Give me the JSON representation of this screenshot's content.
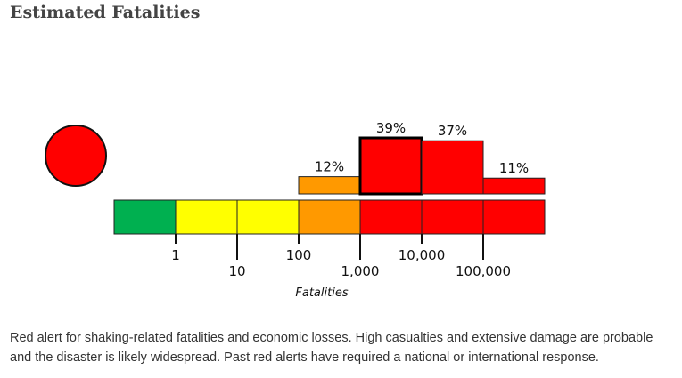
{
  "page": {
    "title": "Estimated Fatalities",
    "description": "Red alert for shaking-related fatalities and economic losses. High casualties and extensive damage are probable and the disaster is likely widespread. Past red alerts have required a national or international response."
  },
  "alert": {
    "level": "red",
    "color": "#ff0000"
  },
  "chart_data": {
    "type": "bar",
    "xlabel": "Fatalities",
    "ylabel": "",
    "bins": [
      {
        "range": "0-1",
        "color": "#00b050",
        "probability": 0,
        "label": ""
      },
      {
        "range": "1-10",
        "color": "#ffff00",
        "probability": 0,
        "label": ""
      },
      {
        "range": "10-100",
        "color": "#ffff00",
        "probability": 0,
        "label": ""
      },
      {
        "range": "100-1,000",
        "color": "#ff9900",
        "probability": 12,
        "label": "12%"
      },
      {
        "range": "1,000-10,000",
        "color": "#ff0000",
        "probability": 39,
        "label": "39%",
        "highlight": true
      },
      {
        "range": "10,000-100,000",
        "color": "#ff0000",
        "probability": 37,
        "label": "37%"
      },
      {
        "range": "100,000+",
        "color": "#ff0000",
        "probability": 11,
        "label": "11%"
      }
    ],
    "ticks": [
      "1",
      "10",
      "100",
      "1,000",
      "10,000",
      "100,000"
    ],
    "ymax": 39
  }
}
